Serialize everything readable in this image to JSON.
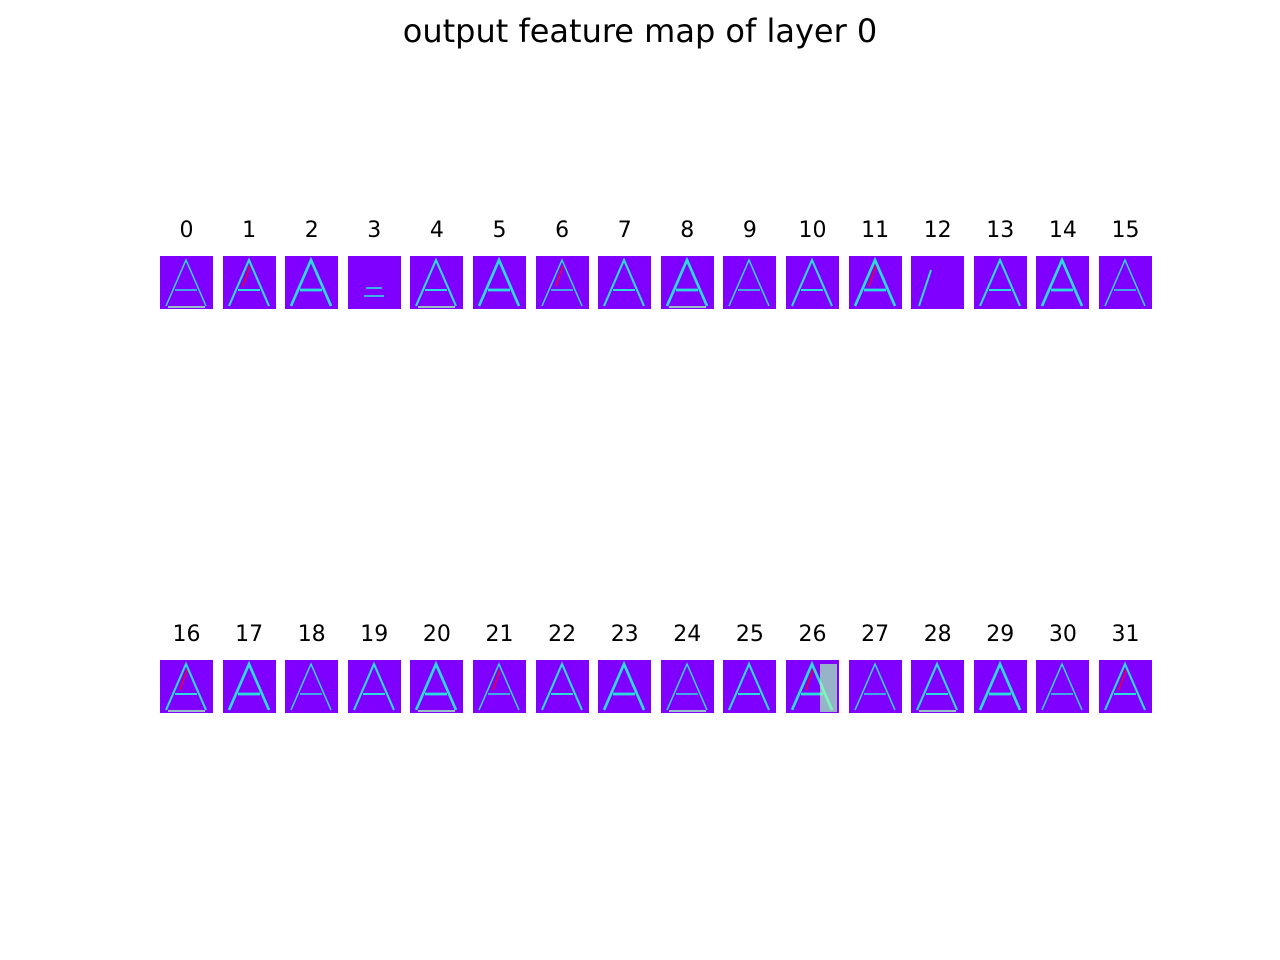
{
  "title": "output feature map of layer 0",
  "colormap": {
    "low": "#8000ff",
    "mid": "#2adddd",
    "high": "#ff0000",
    "bright": "#a0ffb0"
  },
  "rows": [
    [
      "0",
      "1",
      "2",
      "3",
      "4",
      "5",
      "6",
      "7",
      "8",
      "9",
      "10",
      "11",
      "12",
      "13",
      "14",
      "15"
    ],
    [
      "16",
      "17",
      "18",
      "19",
      "20",
      "21",
      "22",
      "23",
      "24",
      "25",
      "26",
      "27",
      "28",
      "29",
      "30",
      "31"
    ]
  ]
}
